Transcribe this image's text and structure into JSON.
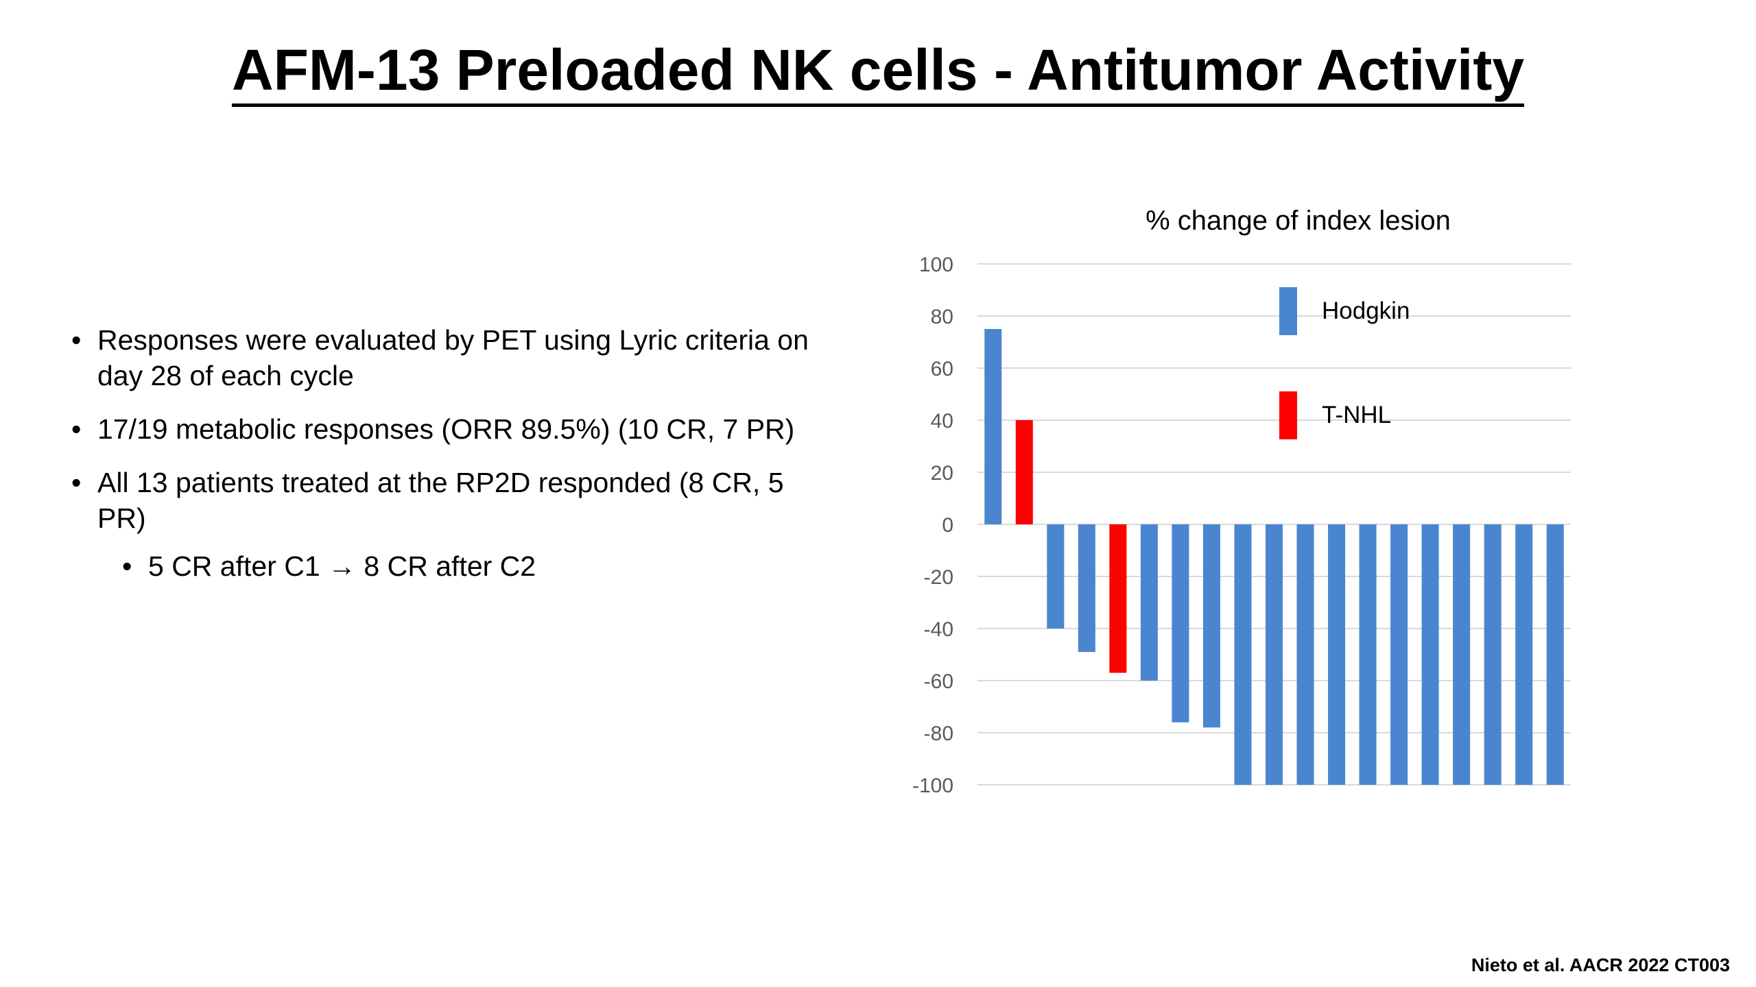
{
  "slide": {
    "title": "AFM-13 Preloaded NK cells  - Antitumor Activity",
    "bullets": [
      "Responses were evaluated by PET using Lyric criteria on day 28 of each cycle",
      "17/19 metabolic responses (ORR 89.5%) (10 CR, 7 PR)",
      "All 13 patients treated at the RP2D responded (8 CR, 5 PR)"
    ],
    "sub_bullet": "5 CR after C1 → 8 CR after C2",
    "footer": "Nieto et al. AACR 2022 CT003"
  },
  "colors": {
    "hodgkin": "#4a86cf",
    "tnhl": "#ff0000",
    "grid": "#d9d9d9",
    "axis_text": "#595959"
  },
  "chart_data": {
    "type": "bar",
    "title": "% change of index lesion",
    "xlabel": "",
    "ylabel": "",
    "ylim": [
      -100,
      100
    ],
    "yticks": [
      100,
      80,
      60,
      40,
      20,
      0,
      -20,
      -40,
      -60,
      -80,
      -100
    ],
    "grid": true,
    "legend_position": "top-right",
    "legend": [
      {
        "name": "Hodgkin",
        "color": "#4a86cf"
      },
      {
        "name": "T-NHL",
        "color": "#ff0000"
      }
    ],
    "bars": [
      {
        "value": 75,
        "group": "Hodgkin"
      },
      {
        "value": 40,
        "group": "T-NHL"
      },
      {
        "value": -40,
        "group": "Hodgkin"
      },
      {
        "value": -49,
        "group": "Hodgkin"
      },
      {
        "value": -57,
        "group": "T-NHL"
      },
      {
        "value": -60,
        "group": "Hodgkin"
      },
      {
        "value": -76,
        "group": "Hodgkin"
      },
      {
        "value": -78,
        "group": "Hodgkin"
      },
      {
        "value": -100,
        "group": "Hodgkin"
      },
      {
        "value": -100,
        "group": "Hodgkin"
      },
      {
        "value": -100,
        "group": "Hodgkin"
      },
      {
        "value": -100,
        "group": "Hodgkin"
      },
      {
        "value": -100,
        "group": "Hodgkin"
      },
      {
        "value": -100,
        "group": "Hodgkin"
      },
      {
        "value": -100,
        "group": "Hodgkin"
      },
      {
        "value": -100,
        "group": "Hodgkin"
      },
      {
        "value": -100,
        "group": "Hodgkin"
      },
      {
        "value": -100,
        "group": "Hodgkin"
      },
      {
        "value": -100,
        "group": "Hodgkin"
      }
    ]
  }
}
